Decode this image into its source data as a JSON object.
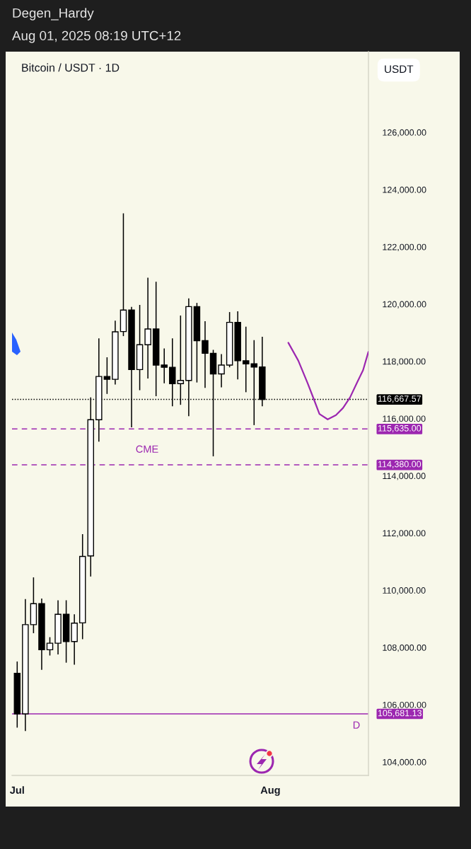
{
  "chart_data": {
    "type": "candlestick",
    "title": "Bitcoin / USDT · 1D",
    "ylabel": "USDT",
    "x": [
      "2025-07-01",
      "2025-07-02",
      "2025-07-03",
      "2025-07-04",
      "2025-07-05",
      "2025-07-06",
      "2025-07-07",
      "2025-07-08",
      "2025-07-09",
      "2025-07-10",
      "2025-07-11",
      "2025-07-12",
      "2025-07-13",
      "2025-07-14",
      "2025-07-15",
      "2025-07-16",
      "2025-07-17",
      "2025-07-18",
      "2025-07-19",
      "2025-07-20",
      "2025-07-21",
      "2025-07-22",
      "2025-07-23",
      "2025-07-24",
      "2025-07-25",
      "2025-07-26",
      "2025-07-27",
      "2025-07-28",
      "2025-07-29",
      "2025-07-30",
      "2025-07-31"
    ],
    "ohlc": [
      [
        107100,
        107510,
        105200,
        105680
      ],
      [
        105680,
        109690,
        105080,
        108800
      ],
      [
        108800,
        110450,
        108500,
        109530
      ],
      [
        109530,
        109710,
        107220,
        107920
      ],
      [
        107920,
        108360,
        107720,
        108150
      ],
      [
        108150,
        109650,
        107760,
        109160
      ],
      [
        109160,
        109650,
        107470,
        108210
      ],
      [
        108210,
        109160,
        107400,
        108850
      ],
      [
        108860,
        111960,
        108290,
        111180
      ],
      [
        111200,
        116740,
        110480,
        115960
      ],
      [
        115960,
        118800,
        115190,
        117470
      ],
      [
        117470,
        118140,
        116860,
        117370
      ],
      [
        117370,
        119420,
        117190,
        119030
      ],
      [
        119040,
        123170,
        118880,
        119790
      ],
      [
        119790,
        119900,
        115690,
        117710
      ],
      [
        117710,
        119970,
        116990,
        118580
      ],
      [
        118580,
        120920,
        117400,
        119130
      ],
      [
        119130,
        120780,
        116780,
        117870
      ],
      [
        117870,
        118450,
        117230,
        117790
      ],
      [
        117790,
        118800,
        116430,
        117220
      ],
      [
        117220,
        119600,
        116480,
        117330
      ],
      [
        117330,
        120200,
        116080,
        119910
      ],
      [
        119910,
        120040,
        117260,
        118720
      ],
      [
        118720,
        119400,
        117070,
        118280
      ],
      [
        118280,
        118400,
        114680,
        117560
      ],
      [
        117560,
        118250,
        117090,
        117870
      ],
      [
        117870,
        119720,
        117790,
        119360
      ],
      [
        119360,
        119750,
        117370,
        118020
      ],
      [
        118020,
        119210,
        116920,
        117910
      ],
      [
        117910,
        118740,
        115770,
        117800
      ],
      [
        117800,
        118860,
        116430,
        116667.57
      ]
    ],
    "colors": [
      "#000000",
      "#ffffff",
      "#ffffff",
      "#000000",
      "#ffffff",
      "#ffffff",
      "#000000",
      "#ffffff",
      "#ffffff",
      "#ffffff",
      "#ffffff",
      "#000000",
      "#ffffff",
      "#ffffff",
      "#000000",
      "#ffffff",
      "#ffffff",
      "#000000",
      "#000000",
      "#000000",
      "#ffffff",
      "#ffffff",
      "#000000",
      "#000000",
      "#000000",
      "#ffffff",
      "#ffffff",
      "#000000",
      "#000000",
      "#000000",
      "#000000"
    ],
    "series": [
      {
        "type": "line",
        "color": "#9c27b0",
        "x": [
          "2025-08-03T04:30",
          "2025-08-04T10:00",
          "2025-08-05T13:30",
          "2025-08-06T06:45",
          "2025-08-07T00:00",
          "2025-08-08T00:15",
          "2025-08-09T00:30",
          "2025-08-09T21:20",
          "2025-08-10T18:00",
          "2025-08-11T15:00",
          "2025-08-12T08:10",
          "2025-08-12T23:50"
        ],
        "values": [
          118650,
          118020,
          117230,
          116700,
          116160,
          115970,
          116120,
          116370,
          116740,
          117270,
          117690,
          118330
        ]
      }
    ],
    "xlim": [
      "2025-06-30T08:50",
      "2025-08-13T00:00"
    ],
    "xticks": [
      {
        "value": "2025-07-01",
        "label": "Jul"
      },
      {
        "value": "2025-08-01",
        "label": "Aug"
      }
    ],
    "ylim": [
      103530,
      128820
    ],
    "yticks": [
      {
        "value": 104000,
        "label": "104,000.00"
      },
      {
        "value": 106000,
        "label": "106,000.00"
      },
      {
        "value": 108000,
        "label": "108,000.00"
      },
      {
        "value": 110000,
        "label": "110,000.00"
      },
      {
        "value": 112000,
        "label": "112,000.00"
      },
      {
        "value": 114000,
        "label": "114,000.00"
      },
      {
        "value": 116000,
        "label": "116,000.00"
      },
      {
        "value": 118000,
        "label": "118,000.00"
      },
      {
        "value": 120000,
        "label": "120,000.00"
      },
      {
        "value": 122000,
        "label": "122,000.00"
      },
      {
        "value": 124000,
        "label": "124,000.00"
      },
      {
        "value": 126000,
        "label": "126,000.00"
      }
    ],
    "ref_lines": [
      {
        "axis": "y",
        "value": 116667.57,
        "label": "116,667.57",
        "color": "#000000",
        "line_style": "dotted"
      },
      {
        "axis": "y",
        "value": 115635,
        "label": "115,635.00",
        "color": "#9c27b0",
        "line_style": "dashed"
      },
      {
        "axis": "y",
        "value": 114380,
        "label": "114,380.00",
        "color": "#9c27b0",
        "line_style": "dashed"
      },
      {
        "axis": "y",
        "value": 105681.13,
        "label": "105,681.13",
        "color": "#9c27b0",
        "line_style": "solid"
      }
    ],
    "annotations": [
      "Degen_Hardy",
      "Aug 01, 2025 08:19 UTC+12",
      "CME",
      "D"
    ]
  }
}
